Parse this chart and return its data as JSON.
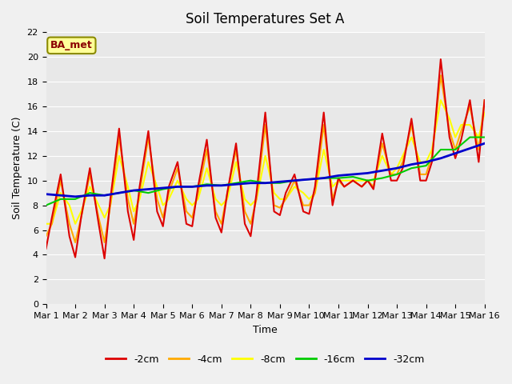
{
  "title": "Soil Temperatures Set A",
  "xlabel": "Time",
  "ylabel": "Soil Temperature (C)",
  "annotation": "BA_met",
  "xlim": [
    0,
    15
  ],
  "ylim": [
    0,
    22
  ],
  "yticks": [
    0,
    2,
    4,
    6,
    8,
    10,
    12,
    14,
    16,
    18,
    20,
    22
  ],
  "xtick_labels": [
    "Mar 1",
    "Mar 2",
    "Mar 3",
    "Mar 4",
    "Mar 5",
    "Mar 6",
    "Mar 7",
    "Mar 8",
    "Mar 9",
    "Mar 10",
    "Mar 11",
    "Mar 12",
    "Mar 13",
    "Mar 14",
    "Mar 15",
    "Mar 16"
  ],
  "background_color": "#e8e8e8",
  "plot_bg": "#e8e8e8",
  "series_colors": [
    "#dd0000",
    "#ffaa00",
    "#ffff00",
    "#00cc00",
    "#0000cc"
  ],
  "series_labels": [
    "-2cm",
    "-4cm",
    "-8cm",
    "-16cm",
    "-32cm"
  ],
  "series_linewidths": [
    1.5,
    1.5,
    1.5,
    1.5,
    2.0
  ],
  "x_2cm": [
    0,
    0.2,
    0.5,
    0.8,
    1.0,
    1.2,
    1.5,
    1.8,
    2.0,
    2.2,
    2.5,
    2.8,
    3.0,
    3.2,
    3.5,
    3.8,
    4.0,
    4.2,
    4.5,
    4.8,
    5.0,
    5.2,
    5.5,
    5.8,
    6.0,
    6.2,
    6.5,
    6.8,
    7.0,
    7.2,
    7.5,
    7.8,
    8.0,
    8.2,
    8.5,
    8.8,
    9.0,
    9.2,
    9.5,
    9.8,
    10.0,
    10.2,
    10.5,
    10.8,
    11.0,
    11.2,
    11.5,
    11.8,
    12.0,
    12.2,
    12.5,
    12.8,
    13.0,
    13.2,
    13.5,
    13.8,
    14.0,
    14.2,
    14.5,
    14.8,
    15.0
  ],
  "y_2cm": [
    4.5,
    7.0,
    10.5,
    5.5,
    3.8,
    7.0,
    11.0,
    6.5,
    3.7,
    8.5,
    14.2,
    7.5,
    5.2,
    9.5,
    14.0,
    7.5,
    6.3,
    9.5,
    11.5,
    6.5,
    6.3,
    9.5,
    13.3,
    7.0,
    5.8,
    9.0,
    13.0,
    6.5,
    5.5,
    9.0,
    15.5,
    7.5,
    7.2,
    9.0,
    10.5,
    7.5,
    7.3,
    9.5,
    15.5,
    8.0,
    10.2,
    9.5,
    10.0,
    9.5,
    10.0,
    9.3,
    13.8,
    10.0,
    10.0,
    11.0,
    15.0,
    10.0,
    10.0,
    11.5,
    19.8,
    13.5,
    11.8,
    13.3,
    16.5,
    11.5,
    16.5
  ],
  "x_4cm": [
    0,
    0.2,
    0.5,
    0.8,
    1.0,
    1.2,
    1.5,
    1.8,
    2.0,
    2.2,
    2.5,
    2.8,
    3.0,
    3.2,
    3.5,
    3.8,
    4.0,
    4.2,
    4.5,
    4.8,
    5.0,
    5.2,
    5.5,
    5.8,
    6.0,
    6.2,
    6.5,
    6.8,
    7.0,
    7.2,
    7.5,
    7.8,
    8.0,
    8.2,
    8.5,
    8.8,
    9.0,
    9.2,
    9.5,
    9.8,
    10.0,
    10.2,
    10.5,
    10.8,
    11.0,
    11.2,
    11.5,
    11.8,
    12.0,
    12.2,
    12.5,
    12.8,
    13.0,
    13.2,
    13.5,
    13.8,
    14.0,
    14.2,
    14.5,
    14.8,
    15.0
  ],
  "y_4cm": [
    5.5,
    6.5,
    10.0,
    6.5,
    5.0,
    7.0,
    10.5,
    7.0,
    5.0,
    8.0,
    13.5,
    8.5,
    6.5,
    9.0,
    13.5,
    8.5,
    7.0,
    9.0,
    11.0,
    7.5,
    7.0,
    9.0,
    12.5,
    7.5,
    6.5,
    9.0,
    12.5,
    7.5,
    6.5,
    8.5,
    14.5,
    8.0,
    7.8,
    8.5,
    10.0,
    8.0,
    8.0,
    9.0,
    14.5,
    8.5,
    10.0,
    9.5,
    10.0,
    9.5,
    10.0,
    9.5,
    13.0,
    10.5,
    10.5,
    11.5,
    14.5,
    10.5,
    10.5,
    12.0,
    18.5,
    14.0,
    12.5,
    14.0,
    16.0,
    12.5,
    16.5
  ],
  "x_8cm": [
    0,
    0.2,
    0.5,
    0.8,
    1.0,
    1.2,
    1.5,
    1.8,
    2.0,
    2.2,
    2.5,
    2.8,
    3.0,
    3.2,
    3.5,
    3.8,
    4.0,
    4.2,
    4.5,
    4.8,
    5.0,
    5.2,
    5.5,
    5.8,
    6.0,
    6.2,
    6.5,
    6.8,
    7.0,
    7.2,
    7.5,
    7.8,
    8.0,
    8.2,
    8.5,
    8.8,
    9.0,
    9.2,
    9.5,
    9.8,
    10.0,
    10.2,
    10.5,
    10.8,
    11.0,
    11.2,
    11.5,
    11.8,
    12.0,
    12.2,
    12.5,
    12.8,
    13.0,
    13.2,
    13.5,
    13.8,
    14.0,
    14.2,
    14.5,
    14.8,
    15.0
  ],
  "y_8cm": [
    6.5,
    6.5,
    9.0,
    8.0,
    6.5,
    7.5,
    9.5,
    8.0,
    7.0,
    8.0,
    12.0,
    9.5,
    7.5,
    8.5,
    11.5,
    9.5,
    8.0,
    8.5,
    10.0,
    8.5,
    8.0,
    8.5,
    11.0,
    8.5,
    8.0,
    8.5,
    11.5,
    8.5,
    8.0,
    8.5,
    12.0,
    9.0,
    8.5,
    8.5,
    9.5,
    9.0,
    8.5,
    9.0,
    12.5,
    9.5,
    10.0,
    10.0,
    10.0,
    10.0,
    10.0,
    10.0,
    12.0,
    10.5,
    11.0,
    12.0,
    13.5,
    11.5,
    11.5,
    12.5,
    16.5,
    15.0,
    13.5,
    14.5,
    14.5,
    13.5,
    15.5
  ],
  "x_16cm": [
    0,
    0.5,
    1.0,
    1.5,
    2.0,
    2.5,
    3.0,
    3.5,
    4.0,
    4.5,
    5.0,
    5.5,
    6.0,
    6.5,
    7.0,
    7.5,
    8.0,
    8.5,
    9.0,
    9.5,
    10.0,
    10.5,
    11.0,
    11.5,
    12.0,
    12.5,
    13.0,
    13.5,
    14.0,
    14.5,
    15.0
  ],
  "y_16cm": [
    8.0,
    8.5,
    8.5,
    9.0,
    8.8,
    9.0,
    9.2,
    9.0,
    9.3,
    9.5,
    9.5,
    9.7,
    9.6,
    9.8,
    10.0,
    9.8,
    9.8,
    10.0,
    10.1,
    10.2,
    10.2,
    10.3,
    10.0,
    10.2,
    10.5,
    11.0,
    11.2,
    12.5,
    12.5,
    13.5,
    13.5
  ],
  "x_32cm": [
    0,
    0.5,
    1.0,
    1.5,
    2.0,
    2.5,
    3.0,
    3.5,
    4.0,
    4.5,
    5.0,
    5.5,
    6.0,
    6.5,
    7.0,
    7.5,
    8.0,
    8.5,
    9.0,
    9.5,
    10.0,
    10.5,
    11.0,
    11.5,
    12.0,
    12.5,
    13.0,
    13.5,
    14.0,
    14.5,
    15.0
  ],
  "y_32cm": [
    8.9,
    8.8,
    8.7,
    8.8,
    8.8,
    9.0,
    9.2,
    9.3,
    9.4,
    9.5,
    9.5,
    9.6,
    9.6,
    9.7,
    9.8,
    9.8,
    9.9,
    10.0,
    10.1,
    10.2,
    10.4,
    10.5,
    10.6,
    10.8,
    11.0,
    11.3,
    11.5,
    11.8,
    12.2,
    12.6,
    13.0
  ]
}
